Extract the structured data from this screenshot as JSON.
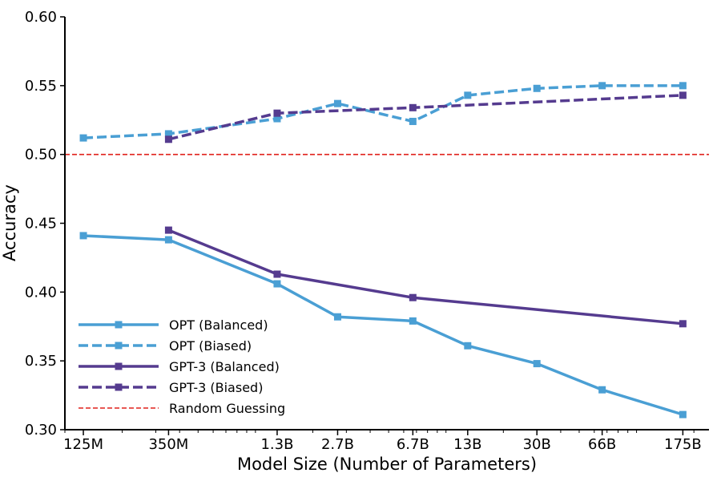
{
  "chart_data": {
    "type": "line",
    "xlabel": "Model Size (Number of Parameters)",
    "ylabel": "Accuracy",
    "x_scale": "log",
    "x": [
      "125M",
      "350M",
      "1.3B",
      "2.7B",
      "6.7B",
      "13B",
      "30B",
      "66B",
      "175B"
    ],
    "x_params": [
      125000000,
      350000000,
      1300000000,
      2700000000,
      6700000000,
      13000000000,
      30000000000,
      66000000000,
      175000000000
    ],
    "ylim": [
      0.3,
      0.6
    ],
    "yticks": [
      "0.30",
      "0.35",
      "0.40",
      "0.45",
      "0.50",
      "0.55",
      "0.60"
    ],
    "grid": false,
    "legend_position": "lower-left",
    "series": [
      {
        "name": "OPT (Balanced)",
        "style": "solid",
        "marker": "square",
        "color": "#4a9fd4",
        "x": [
          "125M",
          "350M",
          "1.3B",
          "2.7B",
          "6.7B",
          "13B",
          "30B",
          "66B",
          "175B"
        ],
        "values": [
          0.441,
          0.438,
          0.406,
          0.382,
          0.379,
          0.361,
          0.348,
          0.329,
          0.311
        ]
      },
      {
        "name": "OPT (Biased)",
        "style": "dashed",
        "marker": "square",
        "color": "#4a9fd4",
        "x": [
          "125M",
          "350M",
          "1.3B",
          "2.7B",
          "6.7B",
          "13B",
          "30B",
          "66B",
          "175B"
        ],
        "values": [
          0.512,
          0.515,
          0.526,
          0.537,
          0.524,
          0.543,
          0.548,
          0.55,
          0.55
        ]
      },
      {
        "name": "GPT-3 (Balanced)",
        "style": "solid",
        "marker": "square",
        "color": "#553b8f",
        "x": [
          "350M",
          "1.3B",
          "6.7B",
          "175B"
        ],
        "values": [
          0.445,
          0.413,
          0.396,
          0.377
        ]
      },
      {
        "name": "GPT-3 (Biased)",
        "style": "dashed",
        "marker": "square",
        "color": "#553b8f",
        "x": [
          "350M",
          "1.3B",
          "6.7B",
          "175B"
        ],
        "values": [
          0.511,
          0.53,
          0.534,
          0.543
        ]
      }
    ],
    "reference_line": {
      "name": "Random Guessing",
      "y": 0.5,
      "style": "dashed",
      "color": "#e0201b"
    }
  }
}
